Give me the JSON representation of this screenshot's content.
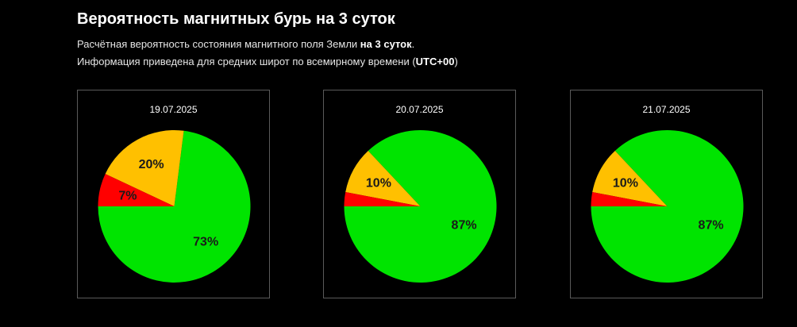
{
  "page": {
    "title": "Вероятность магнитных бурь на 3 суток",
    "description_line1_prefix": "Расчётная вероятность состояния магнитного поля Земли ",
    "description_line1_bold": "на 3 суток",
    "description_line1_suffix": ".",
    "description_line2_prefix": "Информация приведена для средних широт по всемирному времени (",
    "description_line2_bold": "UTC+00",
    "description_line2_suffix": ")"
  },
  "colors": {
    "green": "#00e400",
    "yellow": "#ffc000",
    "red": "#ff0000",
    "background": "#000000",
    "border": "#5a5a5a"
  },
  "chart_data": [
    {
      "type": "pie",
      "title": "19.07.2025",
      "slices": [
        {
          "value": 73,
          "label": "73%",
          "color": "#00e400"
        },
        {
          "value": 20,
          "label": "20%",
          "color": "#ffc000"
        },
        {
          "value": 7,
          "label": "7%",
          "color": "#ff0000"
        }
      ]
    },
    {
      "type": "pie",
      "title": "20.07.2025",
      "slices": [
        {
          "value": 87,
          "label": "87%",
          "color": "#00e400"
        },
        {
          "value": 10,
          "label": "10%",
          "color": "#ffc000"
        },
        {
          "value": 3,
          "label": "",
          "color": "#ff0000"
        }
      ]
    },
    {
      "type": "pie",
      "title": "21.07.2025",
      "slices": [
        {
          "value": 87,
          "label": "87%",
          "color": "#00e400"
        },
        {
          "value": 10,
          "label": "10%",
          "color": "#ffc000"
        },
        {
          "value": 3,
          "label": "",
          "color": "#ff0000"
        }
      ]
    }
  ]
}
